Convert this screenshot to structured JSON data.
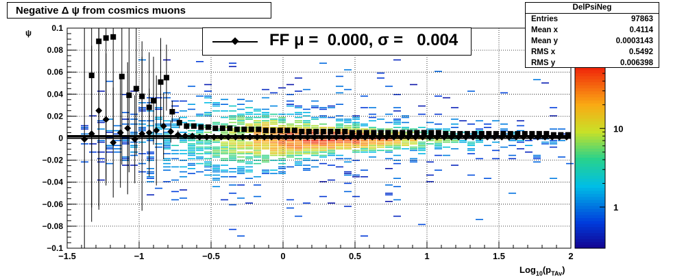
{
  "chart_data": {
    "type": "heatmap",
    "title": "Negative Δ ψ from cosmics muons",
    "xlabel": "Log",
    "xlabel_sub": "10",
    "xlabel_tail": "(p",
    "xlabel_sub2": "TAv",
    "xlabel_close": ")",
    "ylabel": "ψ",
    "xlim": [
      -1.5,
      2
    ],
    "ylim": [
      -0.1,
      0.1
    ],
    "x_ticks": [
      "−1.5",
      "−1",
      "−0.5",
      "0",
      "0.5",
      "1",
      "1.5",
      "2"
    ],
    "x_tick_values": [
      -1.5,
      -1,
      -0.5,
      0,
      0.5,
      1,
      1.5,
      2
    ],
    "y_ticks": [
      "−0.1",
      "−0.08",
      "−0.06",
      "−0.04",
      "−0.02",
      "0",
      "0.02",
      "0.04",
      "0.06",
      "0.08",
      "0.1"
    ],
    "y_tick_values": [
      -0.1,
      -0.08,
      -0.06,
      -0.04,
      -0.02,
      0,
      0.02,
      0.04,
      0.06,
      0.08,
      0.1
    ],
    "grid": true,
    "colorbar": {
      "scale": "log",
      "labels": [
        "1",
        "10"
      ],
      "label_values": [
        1,
        10
      ]
    },
    "fit_line": {
      "y": 0.0,
      "color": "#000000"
    },
    "profile_squares": {
      "x": [
        -1.33,
        -1.28,
        -1.23,
        -1.18,
        -1.12,
        -1.07,
        -1.02,
        -0.98,
        -0.93,
        -0.9,
        -0.85,
        -0.81,
        -0.77,
        -0.72,
        -0.67,
        -0.62,
        -0.57,
        -0.52,
        -0.47,
        -0.42,
        -0.37,
        -0.32,
        -0.27,
        -0.22,
        -0.17,
        -0.12,
        -0.07,
        -0.02,
        0.03,
        0.08,
        0.13,
        0.18,
        0.23,
        0.28,
        0.33,
        0.38,
        0.43,
        0.48,
        0.53,
        0.58,
        0.63,
        0.68,
        0.73,
        0.78,
        0.83,
        0.88,
        0.93,
        0.98,
        1.03,
        1.08,
        1.13,
        1.18,
        1.23,
        1.28,
        1.33,
        1.38,
        1.43,
        1.48,
        1.53,
        1.58,
        1.63,
        1.68,
        1.73,
        1.78,
        1.83,
        1.88,
        1.93,
        1.98
      ],
      "y": [
        0.057,
        0.088,
        0.091,
        0.092,
        0.056,
        0.039,
        0.045,
        0.038,
        0.028,
        0.034,
        0.051,
        0.055,
        0.024,
        0.014,
        0.011,
        0.011,
        0.01,
        0.01,
        0.009,
        0.009,
        0.009,
        0.008,
        0.008,
        0.008,
        0.008,
        0.007,
        0.007,
        0.007,
        0.007,
        0.007,
        0.006,
        0.006,
        0.006,
        0.006,
        0.006,
        0.006,
        0.006,
        0.005,
        0.005,
        0.005,
        0.005,
        0.005,
        0.005,
        0.005,
        0.005,
        0.005,
        0.005,
        0.005,
        0.005,
        0.005,
        0.004,
        0.004,
        0.004,
        0.004,
        0.004,
        0.004,
        0.004,
        0.004,
        0.004,
        0.004,
        0.004,
        0.004,
        0.004,
        0.004,
        0.004,
        0.003,
        0.003,
        0.003
      ],
      "yerr": [
        0.12,
        0.15,
        0.13,
        0.1,
        0.08,
        0.07,
        0.06,
        0.05,
        0.05,
        0.04,
        0.04,
        0.03,
        0.01,
        0.005,
        0.003,
        0.002,
        0.002,
        0.002,
        0.001,
        0.001,
        0.001,
        0.001,
        0.001,
        0.001,
        0.001,
        0.001,
        0.001,
        0.001,
        0.001,
        0.001,
        0.001,
        0.001,
        0.001,
        0.001,
        0.001,
        0.001,
        0.001,
        0.001,
        0.001,
        0.001,
        0.001,
        0.001,
        0.001,
        0.001,
        0.001,
        0.001,
        0.001,
        0.001,
        0.001,
        0.001,
        0.001,
        0.001,
        0.001,
        0.001,
        0.001,
        0.001,
        0.001,
        0.001,
        0.001,
        0.001,
        0.001,
        0.001,
        0.001,
        0.001,
        0.001,
        0.001,
        0.001,
        0.001
      ]
    },
    "profile_diamonds": {
      "x": [
        -1.38,
        -1.33,
        -1.28,
        -1.23,
        -1.18,
        -1.13,
        -1.08,
        -1.03,
        -0.98,
        -0.93,
        -0.88,
        -0.83,
        -0.78,
        -0.73,
        -0.68,
        -0.63,
        -0.58,
        -0.53,
        -0.48,
        -0.43,
        -0.38,
        -0.33,
        -0.28,
        -0.23,
        -0.18,
        -0.13,
        -0.08,
        -0.03,
        0.02,
        0.07,
        0.12,
        0.17,
        0.22,
        0.27,
        0.32,
        0.37,
        0.42,
        0.47,
        0.52,
        0.57,
        0.62,
        0.67,
        0.72,
        0.77,
        0.82,
        0.87,
        0.92,
        0.97,
        1.02,
        1.07,
        1.12,
        1.17,
        1.22,
        1.27,
        1.32,
        1.37,
        1.42,
        1.47,
        1.52,
        1.57,
        1.62,
        1.67,
        1.72,
        1.77,
        1.82,
        1.87,
        1.92,
        1.97
      ],
      "y": [
        -0.001,
        0.004,
        0.025,
        0.017,
        -0.004,
        0.005,
        0.009,
        -0.001,
        0.004,
        0.005,
        0.007,
        0.011,
        0.006,
        0.003,
        0.002,
        0.002,
        0.001,
        0.001,
        0.001,
        0.001,
        0.001,
        0.001,
        0.001,
        0.001,
        0.001,
        0.001,
        0.001,
        0.001,
        0.001,
        0.001,
        0.001,
        0.001,
        0.001,
        0.001,
        0.001,
        0.001,
        0.001,
        0.001,
        0.001,
        0.001,
        0.001,
        0.001,
        0.001,
        0.001,
        0.001,
        0.001,
        0.001,
        0.001,
        0.001,
        0.001,
        0.001,
        0.001,
        0.001,
        0.001,
        0.001,
        0.001,
        0.001,
        0.001,
        0.001,
        0.001,
        0.001,
        0.001,
        0.001,
        0.001,
        0.001,
        0.001,
        0.001,
        0.001
      ],
      "yerr": [
        0.2,
        0.08,
        0.09,
        0.06,
        0.05,
        0.05,
        0.06,
        0.04,
        0.07,
        0.04,
        0.05,
        0.03,
        0.01,
        0.004,
        0.002,
        0.002,
        0.001,
        0.001,
        0.001,
        0.001,
        0.001,
        0.001,
        0.001,
        0.001,
        0.001,
        0.001,
        0.001,
        0.001,
        0.001,
        0.001,
        0.001,
        0.001,
        0.001,
        0.001,
        0.001,
        0.001,
        0.001,
        0.001,
        0.001,
        0.001,
        0.001,
        0.001,
        0.001,
        0.001,
        0.001,
        0.001,
        0.001,
        0.001,
        0.001,
        0.001,
        0.001,
        0.001,
        0.001,
        0.001,
        0.001,
        0.001,
        0.001,
        0.001,
        0.001,
        0.001,
        0.001,
        0.001,
        0.001,
        0.001,
        0.001,
        0.001,
        0.001,
        0.001
      ]
    },
    "legend": {
      "label": "FF μ =  0.000, σ =   0.004"
    },
    "stats": {
      "name": "DelPsiNeg",
      "rows": [
        {
          "key": "Entries",
          "value": "97863"
        },
        {
          "key": "Mean x",
          "value": "0.4114"
        },
        {
          "key": "Mean y",
          "value": "0.0003143"
        },
        {
          "key": "RMS x",
          "value": "0.5492"
        },
        {
          "key": "RMS y",
          "value": "0.006398"
        }
      ]
    }
  }
}
